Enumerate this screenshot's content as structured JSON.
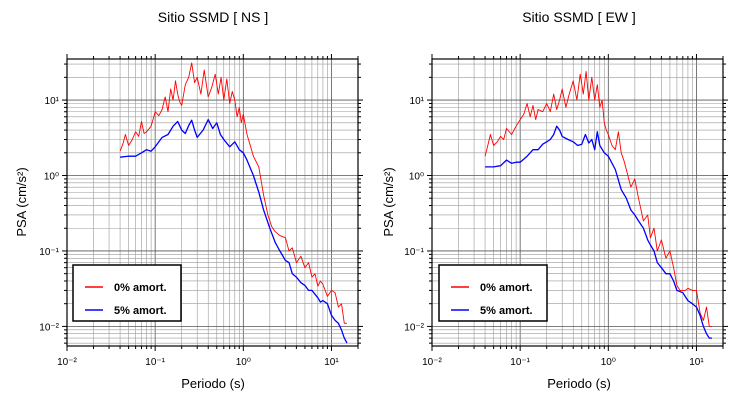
{
  "chart_data": [
    {
      "type": "line",
      "title": "Sitio SSMD [ NS ]",
      "xlabel": "Periodo (s)",
      "ylabel": "PSA (cm/s²)",
      "x_scale": "log",
      "y_scale": "log",
      "xlim": [
        0.01,
        20
      ],
      "ylim": [
        0.0055,
        35
      ],
      "grid": true,
      "legend_position": "bottom-left",
      "x_ticks": [
        {
          "value": 0.01,
          "label": "10⁻²"
        },
        {
          "value": 0.1,
          "label": "10⁻¹"
        },
        {
          "value": 1,
          "label": "10⁰"
        },
        {
          "value": 10,
          "label": "10¹"
        }
      ],
      "y_ticks": [
        {
          "value": 0.01,
          "label": "10⁻²"
        },
        {
          "value": 0.1,
          "label": "10⁻¹"
        },
        {
          "value": 1,
          "label": "10⁰"
        },
        {
          "value": 10,
          "label": "10¹"
        }
      ],
      "series": [
        {
          "name": "0% amort.",
          "color": "#ff0000",
          "points": [
            [
              0.04,
              2.1
            ],
            [
              0.043,
              2.6
            ],
            [
              0.046,
              3.5
            ],
            [
              0.05,
              2.5
            ],
            [
              0.055,
              3.0
            ],
            [
              0.06,
              3.8
            ],
            [
              0.065,
              3.3
            ],
            [
              0.07,
              5.2
            ],
            [
              0.075,
              3.6
            ],
            [
              0.08,
              3.8
            ],
            [
              0.09,
              4.5
            ],
            [
              0.1,
              7.0
            ],
            [
              0.11,
              6.2
            ],
            [
              0.12,
              7.5
            ],
            [
              0.13,
              11.0
            ],
            [
              0.14,
              7.0
            ],
            [
              0.15,
              14.0
            ],
            [
              0.16,
              10.0
            ],
            [
              0.17,
              18.0
            ],
            [
              0.18,
              12.0
            ],
            [
              0.19,
              9.5
            ],
            [
              0.2,
              8.5
            ],
            [
              0.22,
              16.0
            ],
            [
              0.24,
              20.0
            ],
            [
              0.26,
              31.0
            ],
            [
              0.28,
              17.0
            ],
            [
              0.3,
              20.0
            ],
            [
              0.33,
              12.0
            ],
            [
              0.36,
              25.0
            ],
            [
              0.4,
              11.0
            ],
            [
              0.44,
              15.0
            ],
            [
              0.48,
              22.0
            ],
            [
              0.52,
              12.0
            ],
            [
              0.56,
              20.0
            ],
            [
              0.6,
              10.0
            ],
            [
              0.65,
              19.0
            ],
            [
              0.7,
              9.0
            ],
            [
              0.75,
              13.0
            ],
            [
              0.8,
              10.0
            ],
            [
              0.85,
              6.0
            ],
            [
              0.9,
              8.0
            ],
            [
              0.95,
              5.0
            ],
            [
              1.0,
              6.5
            ],
            [
              1.1,
              3.5
            ],
            [
              1.2,
              2.5
            ],
            [
              1.3,
              1.8
            ],
            [
              1.5,
              1.3
            ],
            [
              1.7,
              0.55
            ],
            [
              1.9,
              0.3
            ],
            [
              2.1,
              0.21
            ],
            [
              2.3,
              0.18
            ],
            [
              2.6,
              0.16
            ],
            [
              3.0,
              0.15
            ],
            [
              3.3,
              0.1
            ],
            [
              3.6,
              0.11
            ],
            [
              4.0,
              0.07
            ],
            [
              4.5,
              0.085
            ],
            [
              5.0,
              0.06
            ],
            [
              5.5,
              0.07
            ],
            [
              6.0,
              0.045
            ],
            [
              6.5,
              0.05
            ],
            [
              7.0,
              0.034
            ],
            [
              7.5,
              0.04
            ],
            [
              8.0,
              0.036
            ],
            [
              9.0,
              0.025
            ],
            [
              10.0,
              0.03
            ],
            [
              11.0,
              0.028
            ],
            [
              12.0,
              0.018
            ],
            [
              13.0,
              0.02
            ],
            [
              14.0,
              0.011
            ],
            [
              15.0,
              0.011
            ]
          ]
        },
        {
          "name": "5% amort.",
          "color": "#0000ff",
          "points": [
            [
              0.04,
              1.75
            ],
            [
              0.05,
              1.8
            ],
            [
              0.06,
              1.8
            ],
            [
              0.07,
              2.0
            ],
            [
              0.08,
              2.2
            ],
            [
              0.09,
              2.1
            ],
            [
              0.1,
              2.4
            ],
            [
              0.12,
              3.2
            ],
            [
              0.14,
              3.5
            ],
            [
              0.16,
              4.5
            ],
            [
              0.18,
              5.2
            ],
            [
              0.2,
              4.0
            ],
            [
              0.22,
              3.6
            ],
            [
              0.24,
              4.6
            ],
            [
              0.26,
              5.4
            ],
            [
              0.28,
              4.0
            ],
            [
              0.3,
              3.2
            ],
            [
              0.35,
              4.0
            ],
            [
              0.4,
              5.5
            ],
            [
              0.45,
              4.2
            ],
            [
              0.5,
              5.0
            ],
            [
              0.55,
              3.5
            ],
            [
              0.6,
              3.0
            ],
            [
              0.7,
              2.4
            ],
            [
              0.8,
              2.8
            ],
            [
              0.9,
              2.2
            ],
            [
              1.0,
              2.0
            ],
            [
              1.1,
              1.6
            ],
            [
              1.3,
              1.0
            ],
            [
              1.5,
              0.6
            ],
            [
              1.7,
              0.35
            ],
            [
              2.0,
              0.2
            ],
            [
              2.3,
              0.13
            ],
            [
              2.6,
              0.1
            ],
            [
              3.0,
              0.075
            ],
            [
              3.3,
              0.07
            ],
            [
              3.6,
              0.05
            ],
            [
              4.0,
              0.045
            ],
            [
              4.5,
              0.038
            ],
            [
              5.0,
              0.035
            ],
            [
              5.5,
              0.03
            ],
            [
              6.0,
              0.03
            ],
            [
              7.0,
              0.024
            ],
            [
              7.5,
              0.021
            ],
            [
              8.0,
              0.022
            ],
            [
              9.0,
              0.02
            ],
            [
              10.0,
              0.014
            ],
            [
              11.0,
              0.012
            ],
            [
              12.0,
              0.011
            ],
            [
              13.0,
              0.009
            ],
            [
              14.0,
              0.007
            ],
            [
              15.0,
              0.006
            ]
          ]
        }
      ]
    },
    {
      "type": "line",
      "title": "Sitio SSMD [ EW ]",
      "xlabel": "Periodo (s)",
      "ylabel": "PSA (cm/s²)",
      "x_scale": "log",
      "y_scale": "log",
      "xlim": [
        0.01,
        20
      ],
      "ylim": [
        0.0055,
        35
      ],
      "grid": true,
      "legend_position": "bottom-left",
      "x_ticks": [
        {
          "value": 0.01,
          "label": "10⁻²"
        },
        {
          "value": 0.1,
          "label": "10⁻¹"
        },
        {
          "value": 1,
          "label": "10⁰"
        },
        {
          "value": 10,
          "label": "10¹"
        }
      ],
      "y_ticks": [
        {
          "value": 0.01,
          "label": "10⁻²"
        },
        {
          "value": 0.1,
          "label": "10⁻¹"
        },
        {
          "value": 1,
          "label": "10⁰"
        },
        {
          "value": 10,
          "label": "10¹"
        }
      ],
      "series": [
        {
          "name": "0% amort.",
          "color": "#ff0000",
          "points": [
            [
              0.04,
              1.8
            ],
            [
              0.043,
              2.5
            ],
            [
              0.046,
              3.5
            ],
            [
              0.05,
              2.5
            ],
            [
              0.055,
              2.8
            ],
            [
              0.06,
              3.3
            ],
            [
              0.065,
              3.0
            ],
            [
              0.07,
              4.2
            ],
            [
              0.08,
              3.5
            ],
            [
              0.09,
              4.5
            ],
            [
              0.1,
              5.5
            ],
            [
              0.11,
              6.5
            ],
            [
              0.12,
              9.0
            ],
            [
              0.13,
              6.0
            ],
            [
              0.14,
              8.5
            ],
            [
              0.15,
              5.5
            ],
            [
              0.16,
              7.5
            ],
            [
              0.18,
              7.0
            ],
            [
              0.2,
              9.0
            ],
            [
              0.22,
              7.0
            ],
            [
              0.24,
              12.0
            ],
            [
              0.26,
              7.5
            ],
            [
              0.28,
              10.0
            ],
            [
              0.3,
              14.0
            ],
            [
              0.33,
              8.0
            ],
            [
              0.36,
              12.0
            ],
            [
              0.4,
              18.0
            ],
            [
              0.44,
              10.0
            ],
            [
              0.48,
              22.0
            ],
            [
              0.52,
              12.0
            ],
            [
              0.56,
              24.0
            ],
            [
              0.6,
              10.0
            ],
            [
              0.65,
              20.0
            ],
            [
              0.7,
              10.0
            ],
            [
              0.75,
              16.0
            ],
            [
              0.8,
              8.0
            ],
            [
              0.85,
              10.0
            ],
            [
              0.9,
              5.0
            ],
            [
              0.95,
              4.0
            ],
            [
              1.0,
              3.5
            ],
            [
              1.1,
              2.5
            ],
            [
              1.2,
              2.2
            ],
            [
              1.3,
              3.8
            ],
            [
              1.4,
              2.0
            ],
            [
              1.5,
              1.6
            ],
            [
              1.6,
              1.2
            ],
            [
              1.8,
              0.7
            ],
            [
              2.0,
              0.9
            ],
            [
              2.2,
              0.5
            ],
            [
              2.5,
              0.25
            ],
            [
              2.8,
              0.3
            ],
            [
              3.0,
              0.15
            ],
            [
              3.3,
              0.2
            ],
            [
              3.6,
              0.1
            ],
            [
              4.0,
              0.14
            ],
            [
              4.5,
              0.08
            ],
            [
              5.0,
              0.1
            ],
            [
              5.5,
              0.06
            ],
            [
              6.0,
              0.035
            ],
            [
              6.5,
              0.03
            ],
            [
              7.0,
              0.03
            ],
            [
              7.5,
              0.03
            ],
            [
              8.0,
              0.032
            ],
            [
              9.0,
              0.03
            ],
            [
              10.0,
              0.03
            ],
            [
              11.0,
              0.015
            ],
            [
              12.0,
              0.012
            ],
            [
              13.0,
              0.018
            ],
            [
              14.0,
              0.01
            ],
            [
              15.0,
              0.01
            ]
          ]
        },
        {
          "name": "5% amort.",
          "color": "#0000ff",
          "points": [
            [
              0.04,
              1.3
            ],
            [
              0.05,
              1.3
            ],
            [
              0.06,
              1.35
            ],
            [
              0.07,
              1.6
            ],
            [
              0.08,
              1.45
            ],
            [
              0.09,
              1.5
            ],
            [
              0.1,
              1.5
            ],
            [
              0.12,
              1.8
            ],
            [
              0.14,
              2.2
            ],
            [
              0.16,
              2.2
            ],
            [
              0.18,
              2.6
            ],
            [
              0.2,
              2.8
            ],
            [
              0.22,
              3.0
            ],
            [
              0.24,
              3.5
            ],
            [
              0.26,
              4.5
            ],
            [
              0.28,
              4.0
            ],
            [
              0.3,
              3.3
            ],
            [
              0.35,
              3.0
            ],
            [
              0.4,
              2.8
            ],
            [
              0.45,
              2.5
            ],
            [
              0.5,
              2.6
            ],
            [
              0.55,
              3.5
            ],
            [
              0.6,
              2.7
            ],
            [
              0.65,
              3.0
            ],
            [
              0.7,
              2.2
            ],
            [
              0.75,
              3.8
            ],
            [
              0.8,
              2.5
            ],
            [
              0.9,
              2.0
            ],
            [
              1.0,
              1.8
            ],
            [
              1.2,
              1.2
            ],
            [
              1.4,
              0.65
            ],
            [
              1.6,
              0.5
            ],
            [
              1.8,
              0.35
            ],
            [
              2.0,
              0.3
            ],
            [
              2.2,
              0.25
            ],
            [
              2.5,
              0.2
            ],
            [
              2.8,
              0.14
            ],
            [
              3.0,
              0.12
            ],
            [
              3.3,
              0.1
            ],
            [
              3.6,
              0.07
            ],
            [
              4.0,
              0.06
            ],
            [
              4.5,
              0.05
            ],
            [
              5.0,
              0.05
            ],
            [
              5.5,
              0.04
            ],
            [
              6.0,
              0.03
            ],
            [
              7.0,
              0.028
            ],
            [
              8.0,
              0.022
            ],
            [
              9.0,
              0.02
            ],
            [
              10.0,
              0.018
            ],
            [
              11.0,
              0.014
            ],
            [
              12.0,
              0.01
            ],
            [
              13.0,
              0.008
            ],
            [
              14.0,
              0.007
            ],
            [
              15.0,
              0.007
            ]
          ]
        }
      ]
    }
  ]
}
